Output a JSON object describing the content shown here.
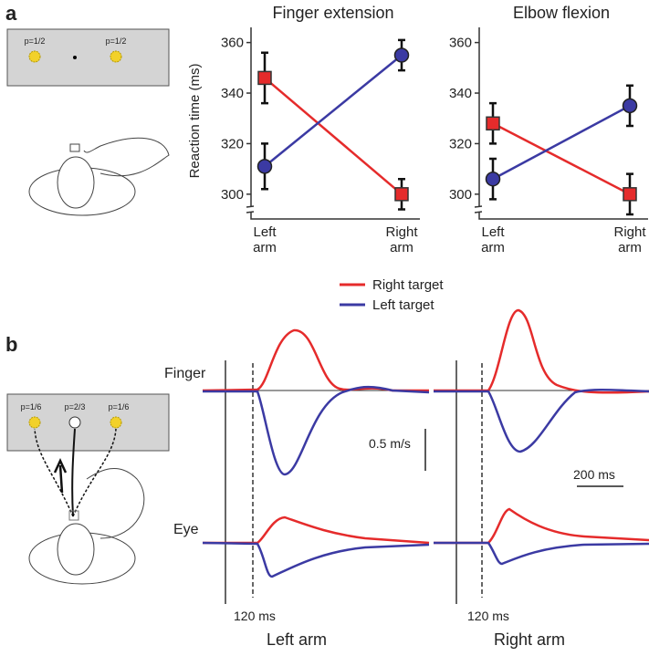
{
  "chart_data": [
    {
      "type": "line",
      "title": "Finger extension",
      "y_label": "Reaction time (ms)",
      "categories": [
        "Left arm",
        "Right arm"
      ],
      "ylim": [
        292,
        366
      ],
      "yticks": [
        300,
        320,
        340,
        360
      ],
      "series": [
        {
          "name": "Right target",
          "color": "#e52b2b",
          "marker": "square",
          "values": [
            346,
            300
          ],
          "errors": [
            10,
            6
          ]
        },
        {
          "name": "Left target",
          "color": "#3b3aa3",
          "marker": "circle",
          "values": [
            311,
            355
          ],
          "errors": [
            9,
            6
          ]
        }
      ]
    },
    {
      "type": "line",
      "title": "Elbow flexion",
      "categories": [
        "Left arm",
        "Right arm"
      ],
      "ylim": [
        292,
        366
      ],
      "yticks": [
        300,
        320,
        340,
        360
      ],
      "series": [
        {
          "color": "#e52b2b",
          "marker": "square",
          "values": [
            328,
            300
          ],
          "errors": [
            8,
            8
          ]
        },
        {
          "color": "#3b3aa3",
          "marker": "circle",
          "values": [
            306,
            335
          ],
          "errors": [
            8,
            8
          ]
        }
      ]
    }
  ],
  "panel_a": {
    "label": "a",
    "probs": [
      "p=1/2",
      "p=1/2"
    ]
  },
  "panel_b": {
    "label": "b",
    "probs": [
      "p=1/6",
      "p=2/3",
      "p=1/6"
    ],
    "finger": "Finger",
    "eye": "Eye",
    "velocity_scale": "0.5 m/s",
    "time_scale": "200 ms",
    "delay": [
      "120 ms",
      "120 ms"
    ],
    "arms": [
      "Left arm",
      "Right arm"
    ]
  }
}
